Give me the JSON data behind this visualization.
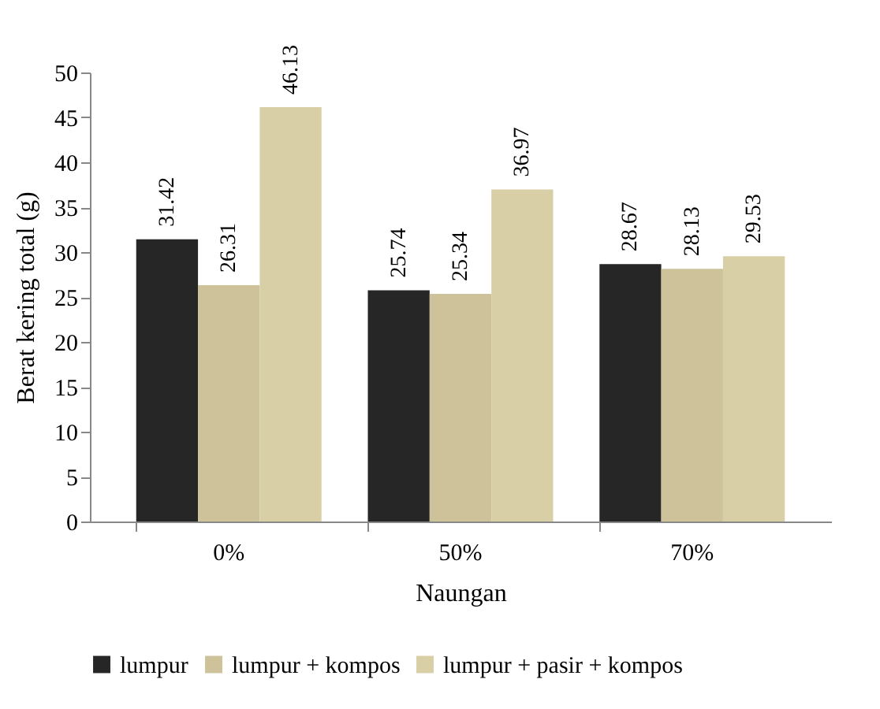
{
  "chart_data": {
    "type": "bar",
    "xlabel": "Naungan",
    "ylabel": "Berat kering total (g)",
    "categories": [
      "0%",
      "50%",
      "70%"
    ],
    "series": [
      {
        "name": "lumpur",
        "color": "#262626",
        "values": [
          31.42,
          25.74,
          28.67
        ]
      },
      {
        "name": "lumpur + kompos",
        "color": "#cdc29a",
        "values": [
          26.31,
          25.34,
          28.13
        ]
      },
      {
        "name": "lumpur + pasir + kompos",
        "color": "#d9cfa6",
        "values": [
          46.13,
          36.97,
          29.53
        ]
      }
    ],
    "ylim": [
      0,
      50
    ],
    "yticks": [
      0,
      5,
      10,
      15,
      20,
      25,
      30,
      35,
      40,
      45,
      50
    ],
    "grid": false,
    "legend": "bottom",
    "data_labels": true
  }
}
